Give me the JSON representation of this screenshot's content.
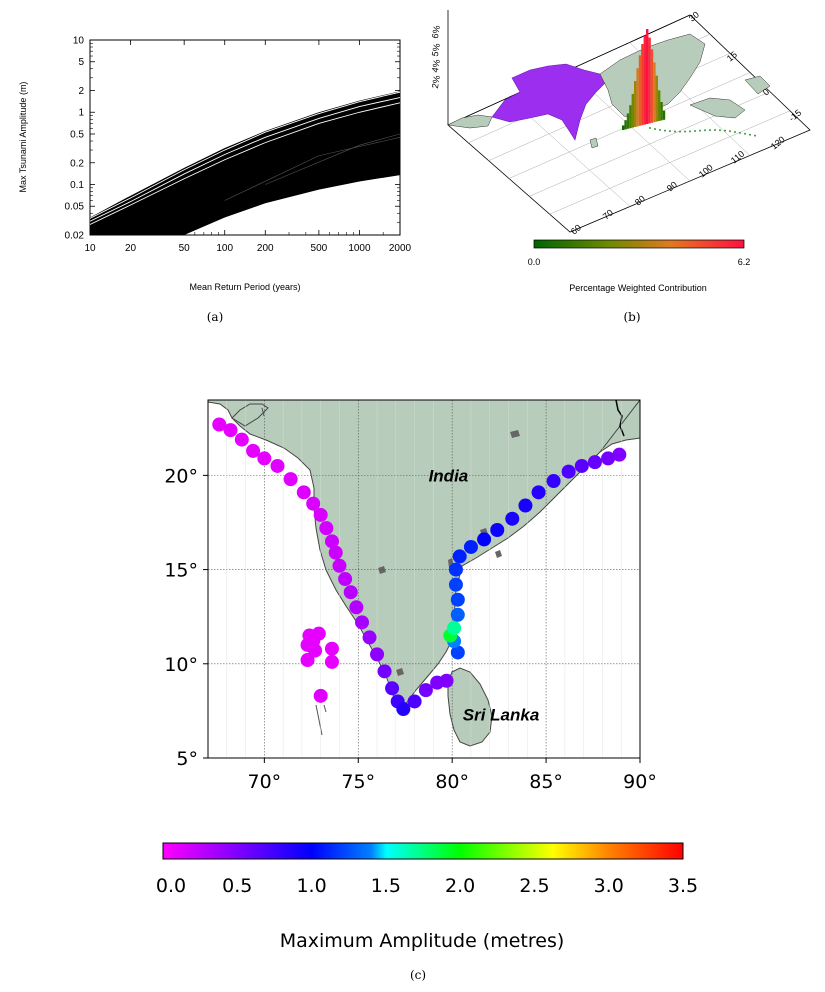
{
  "colors": {
    "land": "#b8ccbb",
    "coast": "#444444",
    "grid": "#555555",
    "white": "#ffffff",
    "black": "#000000"
  },
  "chart_data": [
    {
      "panel": "a",
      "type": "line",
      "xlabel": "Mean Return Period (years)",
      "ylabel": "Max Tsunami Amplitude (m)",
      "xscale": "log",
      "yscale": "log",
      "xlim": [
        10,
        2000
      ],
      "ylim": [
        0.02,
        10
      ],
      "xticks": [
        "10",
        "20",
        "50",
        "100",
        "200",
        "500",
        "1000",
        "2000"
      ],
      "xtick_values": [
        10,
        20,
        50,
        100,
        200,
        500,
        1000,
        2000
      ],
      "yticks": [
        "10",
        "5",
        "2",
        "1",
        "0.5",
        "0.2",
        "0.1",
        "0.05",
        "0.02"
      ],
      "ytick_values": [
        10,
        5,
        2,
        1,
        0.5,
        0.2,
        0.1,
        0.05,
        0.02
      ],
      "envelope_upper": [
        [
          10,
          0.035
        ],
        [
          20,
          0.07
        ],
        [
          50,
          0.17
        ],
        [
          100,
          0.32
        ],
        [
          200,
          0.55
        ],
        [
          500,
          1.0
        ],
        [
          1000,
          1.45
        ],
        [
          2000,
          1.95
        ]
      ],
      "envelope_lower": [
        [
          10,
          0.02
        ],
        [
          50,
          0.02
        ],
        [
          100,
          0.035
        ],
        [
          200,
          0.055
        ],
        [
          500,
          0.085
        ],
        [
          1000,
          0.11
        ],
        [
          2000,
          0.135
        ]
      ],
      "highlighted_curves": [
        [
          [
            10,
            0.034
          ],
          [
            20,
            0.065
          ],
          [
            50,
            0.16
          ],
          [
            100,
            0.3
          ],
          [
            200,
            0.53
          ],
          [
            500,
            0.96
          ],
          [
            1000,
            1.4
          ],
          [
            2000,
            1.9
          ]
        ],
        [
          [
            10,
            0.031
          ],
          [
            20,
            0.058
          ],
          [
            50,
            0.14
          ],
          [
            100,
            0.26
          ],
          [
            200,
            0.45
          ],
          [
            500,
            0.82
          ],
          [
            1000,
            1.2
          ],
          [
            2000,
            1.6
          ]
        ],
        [
          [
            10,
            0.028
          ],
          [
            20,
            0.052
          ],
          [
            50,
            0.12
          ],
          [
            100,
            0.22
          ],
          [
            200,
            0.38
          ],
          [
            500,
            0.7
          ],
          [
            1000,
            1.0
          ],
          [
            2000,
            1.35
          ]
        ]
      ],
      "caption": "(a)"
    },
    {
      "panel": "b",
      "type": "bar",
      "title": "",
      "colorbar_min": "0.0",
      "colorbar_max": "6.2",
      "colorbar_label": "Percentage Weighted Contribution",
      "z_ticks": [
        "2%",
        "4%",
        "5%",
        "6%"
      ],
      "lon_ticks": [
        "60",
        "70",
        "80",
        "90",
        "100",
        "110",
        "120"
      ],
      "lat_ticks": [
        "30",
        "15",
        "0",
        "-15"
      ],
      "bar_values": [
        0.3,
        0.6,
        1.0,
        1.5,
        2.2,
        3.0,
        3.8,
        4.6,
        5.3,
        5.8,
        6.2,
        5.6,
        4.8,
        3.9,
        3.0,
        2.0,
        1.2,
        0.6
      ],
      "caption": "(b)"
    },
    {
      "panel": "c",
      "type": "scatter",
      "xlabel": "",
      "ylabel": "",
      "xlim": [
        67,
        90
      ],
      "ylim": [
        5,
        24
      ],
      "xticks": [
        "70°",
        "75°",
        "80°",
        "85°",
        "90°"
      ],
      "xtick_values": [
        70,
        75,
        80,
        85,
        90
      ],
      "yticks": [
        "20°",
        "15°",
        "10°",
        "5°"
      ],
      "ytick_values": [
        20,
        15,
        10,
        5
      ],
      "grid": true,
      "labels": [
        {
          "text": "India",
          "lon": 79.8,
          "lat": 20.0
        },
        {
          "text": "Sri Lanka",
          "lon": 82.6,
          "lat": 7.3
        }
      ],
      "colorbar_ticks": [
        "0.0",
        "0.5",
        "1.0",
        "1.5",
        "2.0",
        "2.5",
        "3.0",
        "3.5"
      ],
      "colorbar_min": 0,
      "colorbar_max": 3.5,
      "colorbar_label": "Maximum Amplitude (metres)",
      "colorbar_colors": [
        "#ff00ff",
        "#8000ff",
        "#0000ff",
        "#0080ff",
        "#00ffff",
        "#00ff00",
        "#ffff00",
        "#ff8000",
        "#ff0000"
      ],
      "points": [
        [
          67.6,
          22.7,
          0.1
        ],
        [
          68.2,
          22.4,
          0.1
        ],
        [
          68.8,
          21.9,
          0.1
        ],
        [
          69.4,
          21.3,
          0.1
        ],
        [
          70.0,
          20.9,
          0.1
        ],
        [
          70.7,
          20.5,
          0.12
        ],
        [
          71.4,
          19.8,
          0.12
        ],
        [
          72.1,
          19.1,
          0.13
        ],
        [
          72.6,
          18.5,
          0.15
        ],
        [
          73.0,
          17.9,
          0.15
        ],
        [
          73.3,
          17.2,
          0.18
        ],
        [
          73.6,
          16.5,
          0.2
        ],
        [
          73.8,
          15.9,
          0.2
        ],
        [
          74.0,
          15.2,
          0.22
        ],
        [
          74.3,
          14.5,
          0.25
        ],
        [
          74.6,
          13.8,
          0.28
        ],
        [
          74.9,
          13.0,
          0.3
        ],
        [
          75.2,
          12.2,
          0.35
        ],
        [
          75.6,
          11.4,
          0.4
        ],
        [
          76.0,
          10.5,
          0.45
        ],
        [
          76.4,
          9.6,
          0.55
        ],
        [
          76.8,
          8.7,
          0.65
        ],
        [
          77.1,
          8.0,
          0.75
        ],
        [
          77.4,
          7.6,
          0.85
        ],
        [
          78.0,
          8.0,
          0.7
        ],
        [
          78.6,
          8.6,
          0.55
        ],
        [
          79.2,
          9.0,
          0.5
        ],
        [
          79.7,
          9.1,
          0.5
        ],
        [
          72.4,
          11.5,
          0.1
        ],
        [
          72.6,
          11.2,
          0.1
        ],
        [
          72.9,
          11.6,
          0.1
        ],
        [
          72.3,
          11.0,
          0.1
        ],
        [
          72.7,
          10.7,
          0.1
        ],
        [
          73.6,
          10.8,
          0.1
        ],
        [
          72.3,
          10.2,
          0.1
        ],
        [
          73.6,
          10.1,
          0.1
        ],
        [
          73.0,
          8.3,
          0.12
        ],
        [
          80.3,
          10.6,
          1.2
        ],
        [
          80.1,
          11.2,
          1.4
        ],
        [
          79.9,
          11.5,
          1.9
        ],
        [
          80.1,
          11.9,
          1.7
        ],
        [
          80.3,
          12.6,
          1.3
        ],
        [
          80.3,
          13.4,
          1.2
        ],
        [
          80.2,
          14.2,
          1.2
        ],
        [
          80.2,
          15.0,
          1.15
        ],
        [
          80.4,
          15.7,
          1.1
        ],
        [
          81.0,
          16.2,
          1.1
        ],
        [
          81.7,
          16.6,
          1.0
        ],
        [
          82.4,
          17.1,
          0.95
        ],
        [
          83.2,
          17.7,
          0.9
        ],
        [
          83.9,
          18.4,
          0.9
        ],
        [
          84.6,
          19.1,
          0.85
        ],
        [
          85.4,
          19.7,
          0.8
        ],
        [
          86.2,
          20.2,
          0.7
        ],
        [
          86.9,
          20.5,
          0.65
        ],
        [
          87.6,
          20.7,
          0.6
        ],
        [
          88.3,
          20.9,
          0.55
        ],
        [
          88.9,
          21.1,
          0.5
        ]
      ],
      "caption": "(c)"
    }
  ]
}
